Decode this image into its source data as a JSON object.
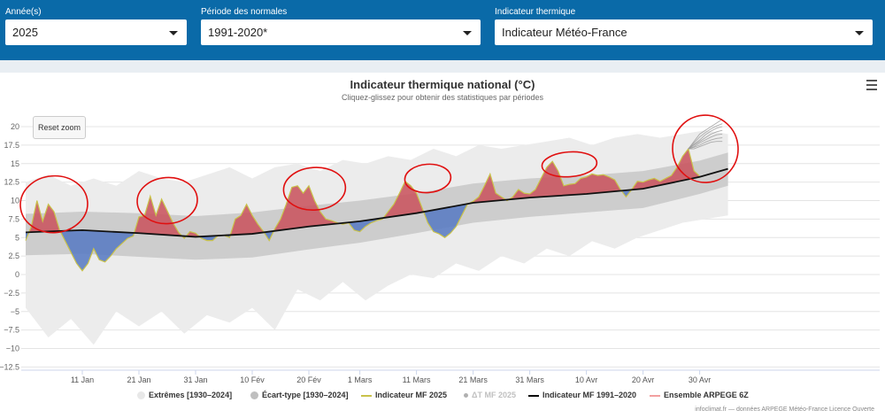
{
  "filters": {
    "year": {
      "label": "Année(s)",
      "value": "2025"
    },
    "period": {
      "label": "Période des normales",
      "value": "1991-2020*"
    },
    "indicator": {
      "label": "Indicateur thermique",
      "value": "Indicateur Météo-France"
    }
  },
  "reset_zoom_label": "Reset zoom",
  "credits": "infoclimat.fr — données ARPEGE Météo-France Licence Ouverte",
  "chart_data": {
    "type": "area",
    "title": "Indicateur thermique national (°C)",
    "subtitle": "Cliquez-glissez pour obtenir des statistiques par périodes",
    "xlabel": "",
    "ylabel": "",
    "ylim": [
      -12.5,
      22
    ],
    "xlim": [
      0,
      124
    ],
    "yticks": [
      20,
      17.5,
      15,
      12.5,
      10,
      7.5,
      5,
      2.5,
      0,
      -2.5,
      -5,
      -7.5,
      -10,
      -12.5
    ],
    "ytick_labels": [
      "20",
      "17.5",
      "15",
      "12.5",
      "10",
      "7.5",
      "5",
      "2.5",
      "0",
      "−2.5",
      "−5",
      "−7.5",
      "−10",
      "−12.5"
    ],
    "xticks": [
      {
        "day": 10,
        "label": "11 Jan"
      },
      {
        "day": 20,
        "label": "21 Jan"
      },
      {
        "day": 30,
        "label": "31 Jan"
      },
      {
        "day": 40,
        "label": "10 Fév"
      },
      {
        "day": 50,
        "label": "20 Fév"
      },
      {
        "day": 59,
        "label": "1 Mars"
      },
      {
        "day": 69,
        "label": "11 Mars"
      },
      {
        "day": 79,
        "label": "21 Mars"
      },
      {
        "day": 89,
        "label": "31 Mars"
      },
      {
        "day": 99,
        "label": "10 Avr"
      },
      {
        "day": 109,
        "label": "20 Avr"
      },
      {
        "day": 119,
        "label": "30 Avr"
      }
    ],
    "grid": true,
    "legend_position": "bottom",
    "normal_1991_2020": {
      "x": [
        0,
        10,
        20,
        30,
        40,
        50,
        59,
        69,
        79,
        89,
        99,
        109,
        119,
        124
      ],
      "y": [
        5.7,
        6.0,
        5.6,
        5.1,
        5.5,
        6.5,
        7.2,
        8.3,
        9.7,
        10.4,
        10.9,
        11.6,
        13.2,
        14.3
      ]
    },
    "std_band": {
      "x": [
        0,
        10,
        20,
        30,
        40,
        50,
        59,
        69,
        79,
        89,
        99,
        109,
        119,
        124
      ],
      "upper": [
        8.2,
        8.5,
        8.3,
        7.9,
        8.4,
        9.3,
        10.0,
        11.0,
        12.3,
        13.0,
        13.4,
        14.0,
        15.4,
        16.5
      ],
      "lower": [
        2.6,
        2.8,
        2.4,
        2.0,
        2.3,
        3.4,
        4.3,
        5.6,
        7.0,
        7.8,
        8.4,
        9.0,
        10.9,
        12.0
      ]
    },
    "extremes_band": {
      "x": [
        0,
        4,
        8,
        12,
        16,
        20,
        24,
        28,
        32,
        36,
        40,
        44,
        48,
        52,
        56,
        60,
        64,
        68,
        72,
        76,
        80,
        84,
        88,
        92,
        96,
        100,
        104,
        108,
        112,
        116,
        120,
        124
      ],
      "max": [
        12.5,
        13.5,
        12.0,
        13.0,
        12.0,
        14.0,
        13.0,
        12.5,
        13.5,
        14.5,
        13.0,
        14.5,
        15.0,
        14.0,
        15.5,
        15.0,
        16.0,
        15.5,
        17.0,
        16.0,
        17.5,
        17.0,
        17.5,
        18.0,
        18.5,
        17.5,
        18.5,
        19.0,
        18.5,
        19.0,
        19.5,
        19.0
      ],
      "min": [
        -4.5,
        -8.5,
        -6.0,
        -9.5,
        -5.0,
        -7.0,
        -5.0,
        -8.0,
        -5.5,
        -6.5,
        -4.5,
        -7.5,
        -2.0,
        -3.5,
        -1.0,
        -3.5,
        -1.5,
        0.0,
        -0.5,
        1.5,
        0.5,
        2.5,
        1.5,
        3.5,
        2.5,
        4.5,
        3.5,
        5.0,
        6.0,
        7.0,
        7.5,
        8.0
      ]
    },
    "indicator_mf_2025": {
      "x": [
        0,
        1,
        2,
        3,
        4,
        5,
        6,
        7,
        8,
        9,
        10,
        11,
        12,
        13,
        14,
        15,
        16,
        17,
        18,
        19,
        20,
        21,
        22,
        23,
        24,
        25,
        26,
        27,
        28,
        29,
        30,
        31,
        32,
        33,
        34,
        35,
        36,
        37,
        38,
        39,
        40,
        41,
        42,
        43,
        44,
        45,
        46,
        47,
        48,
        49,
        50,
        51,
        52,
        53,
        54,
        55,
        56,
        57,
        58,
        59,
        60,
        61,
        62,
        63,
        64,
        65,
        66,
        67,
        68,
        69,
        70,
        71,
        72,
        73,
        74,
        75,
        76,
        77,
        78,
        79,
        80,
        81,
        82,
        83,
        84,
        85,
        86,
        87,
        88,
        89,
        90,
        91,
        92,
        93,
        94,
        95,
        96,
        97,
        98,
        99,
        100,
        101,
        102,
        103,
        104,
        105,
        106,
        107,
        108,
        109,
        110,
        111,
        112,
        113,
        114,
        115,
        116,
        117,
        118,
        119
      ],
      "y": [
        4.6,
        6.5,
        10.0,
        7.2,
        9.5,
        8.5,
        6.0,
        4.5,
        3.0,
        1.5,
        0.5,
        1.5,
        3.5,
        2.0,
        1.7,
        2.5,
        3.5,
        4.2,
        4.9,
        5.2,
        7.8,
        8.0,
        10.6,
        8.0,
        10.2,
        8.6,
        7.0,
        5.7,
        4.9,
        5.8,
        5.6,
        4.9,
        4.6,
        4.6,
        5.3,
        5.3,
        5.0,
        7.5,
        8.0,
        9.5,
        8.0,
        6.8,
        5.8,
        4.6,
        6.2,
        7.5,
        9.5,
        11.8,
        12.0,
        11.0,
        12.0,
        10.0,
        8.5,
        7.5,
        7.3,
        7.0,
        6.8,
        7.0,
        6.0,
        5.8,
        6.5,
        7.0,
        7.3,
        7.5,
        8.5,
        9.5,
        11.0,
        12.6,
        12.0,
        11.0,
        9.0,
        7.0,
        5.8,
        5.5,
        5.0,
        5.6,
        6.5,
        8.0,
        9.5,
        9.9,
        10.5,
        12.0,
        13.6,
        11.0,
        10.5,
        10.0,
        10.5,
        11.5,
        11.0,
        10.9,
        11.5,
        13.0,
        14.5,
        15.3,
        14.0,
        12.0,
        12.2,
        12.3,
        13.0,
        13.2,
        13.6,
        13.4,
        13.5,
        13.2,
        12.8,
        11.5,
        10.5,
        11.5,
        12.6,
        12.5,
        12.8,
        13.0,
        12.6,
        13.0,
        13.4,
        14.5,
        16.0,
        17.0,
        14.0,
        13.3
      ]
    },
    "arpege_ensemble": {
      "x": [
        117,
        118,
        119,
        120,
        121,
        122,
        123
      ],
      "members": [
        [
          17.0,
          18.0,
          19.0,
          19.5,
          20.0,
          20.5,
          21.0
        ],
        [
          17.0,
          17.8,
          18.6,
          19.2,
          19.7,
          20.1,
          20.4
        ],
        [
          17.0,
          17.6,
          18.2,
          18.9,
          19.4,
          19.8,
          20.0
        ],
        [
          17.0,
          17.5,
          18.0,
          18.5,
          19.0,
          19.3,
          19.5
        ],
        [
          17.0,
          17.3,
          17.8,
          18.2,
          18.6,
          18.9,
          19.0
        ],
        [
          17.0,
          17.2,
          17.5,
          17.9,
          18.2,
          18.4,
          18.5
        ],
        [
          17.0,
          17.0,
          17.3,
          17.6,
          17.9,
          18.0,
          18.0
        ]
      ]
    },
    "legend": [
      {
        "label": "Extrêmes [1930–2024]",
        "color": "#e8e8e8"
      },
      {
        "label": "Écart-type [1930–2024]",
        "color": "#bfbfbf"
      },
      {
        "label": "Indicateur MF 2025",
        "color": "#c9c24a"
      },
      {
        "label": "ΔT MF 2025",
        "color": "#b0b0b0"
      },
      {
        "label": "Indicateur MF 1991–2020",
        "color": "#000000"
      },
      {
        "label": "Ensemble ARPEGE 6Z",
        "color": "#f2a0a0"
      }
    ],
    "colors": {
      "above": "#c9505b",
      "below": "#5578c2",
      "extremes": "#ececec",
      "std": "#c8c8c8",
      "normal_line": "#111111",
      "mf_line": "#c9c24a",
      "annotation": "#e01010",
      "ensemble": "#9a9a9a"
    }
  }
}
